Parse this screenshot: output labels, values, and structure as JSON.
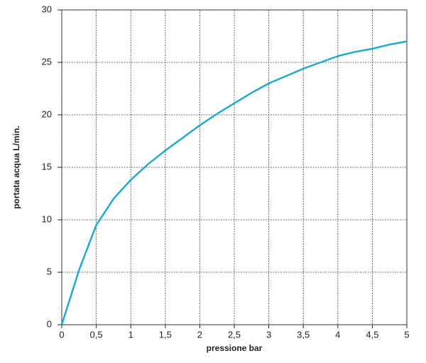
{
  "chart_data": {
    "type": "line",
    "x": [
      0,
      0.25,
      0.5,
      0.75,
      1,
      1.25,
      1.5,
      1.75,
      2,
      2.25,
      2.5,
      2.75,
      3,
      3.25,
      3.5,
      3.75,
      4,
      4.25,
      4.5,
      4.75,
      5
    ],
    "series": [
      {
        "color": "#1fa9d6",
        "values": [
          0,
          5.2,
          9.5,
          12,
          13.8,
          15.3,
          16.6,
          17.8,
          19,
          20.1,
          21.1,
          22.1,
          23,
          23.7,
          24.4,
          25,
          25.6,
          26,
          26.3,
          26.7,
          27
        ]
      }
    ],
    "xlabel": "pressione bar",
    "ylabel": "portata acqua  L/min.",
    "xlim": [
      0,
      5
    ],
    "ylim": [
      0,
      30
    ],
    "xticks": [
      0,
      {
        "value": 0.5,
        "label": "0,5"
      },
      1,
      {
        "value": 1.5,
        "label": "1,5"
      },
      2,
      {
        "value": 2.5,
        "label": "2,5"
      },
      3,
      {
        "value": 3.5,
        "label": "3,5"
      },
      4,
      {
        "value": 4.5,
        "label": "4,5"
      },
      5
    ],
    "yticks": [
      0,
      5,
      10,
      15,
      20,
      25,
      30
    ],
    "grid": true
  }
}
